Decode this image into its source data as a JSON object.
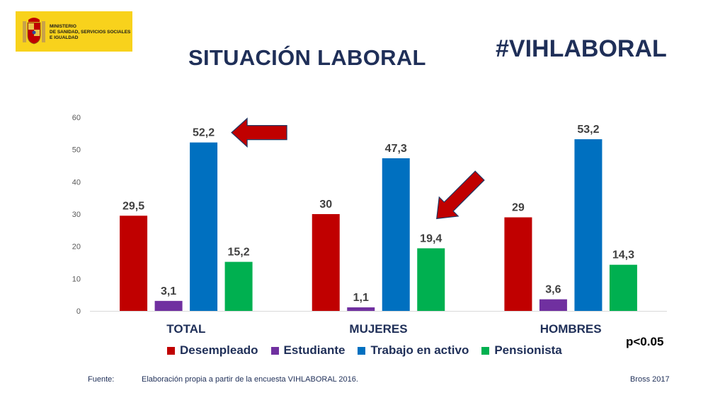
{
  "logo": {
    "ministry_lines": "MINISTERIO\nDE SANIDAD, SERVICIOS SOCIALES\nE IGUALDAD",
    "colors": {
      "background": "#f8d21c"
    }
  },
  "title": "SITUACIÓN LABORAL",
  "hashtag": "#VIHLABORAL",
  "p_value": "p<0.05",
  "footer": {
    "source_label": "Fuente:",
    "source_text": "Elaboración propia a partir de la encuesta  VIHLABORAL 2016.",
    "credit": "Bross 2017"
  },
  "chart_data": {
    "type": "bar",
    "categories": [
      "TOTAL",
      "MUJERES",
      "HOMBRES"
    ],
    "series": [
      {
        "name": "Desempleado",
        "color": "#c00000",
        "values": [
          29.5,
          30,
          29
        ],
        "labels": [
          "29,5",
          "30",
          "29"
        ]
      },
      {
        "name": "Estudiante",
        "color": "#7030a0",
        "values": [
          3.1,
          1.1,
          3.6
        ],
        "labels": [
          "3,1",
          "1,1",
          "3,6"
        ]
      },
      {
        "name": "Trabajo en activo",
        "color": "#0070c0",
        "values": [
          52.2,
          47.3,
          53.2
        ],
        "labels": [
          "52,2",
          "47,3",
          "53,2"
        ]
      },
      {
        "name": "Pensionista",
        "color": "#00b050",
        "values": [
          15.2,
          19.4,
          14.3
        ],
        "labels": [
          "15,2",
          "19,4",
          "14,3"
        ]
      }
    ],
    "ylim": [
      0,
      60
    ],
    "yticks": [
      0,
      10,
      20,
      30,
      40,
      50,
      60
    ],
    "grid": false,
    "legend_position": "bottom",
    "annotations": [
      {
        "type": "arrow",
        "points_to": "TOTAL / Trabajo en activo",
        "color": "#c00000"
      },
      {
        "type": "arrow",
        "points_to": "MUJERES / Pensionista",
        "color": "#c00000"
      }
    ]
  }
}
